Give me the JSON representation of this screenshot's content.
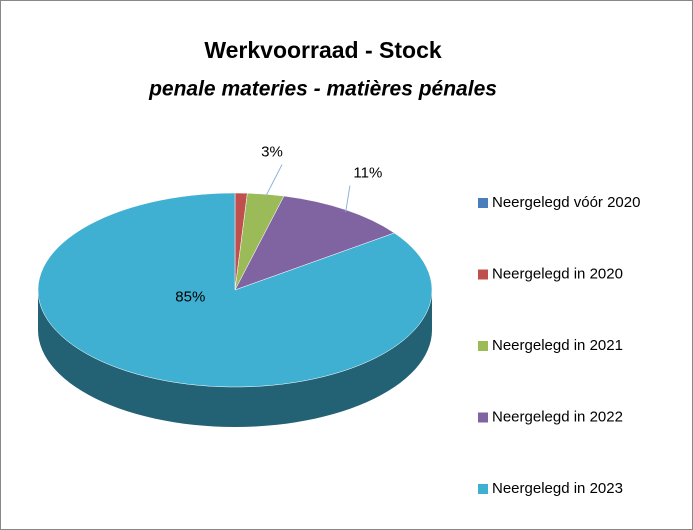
{
  "chart_data": {
    "type": "pie",
    "title": "Werkvoorraad - Stock",
    "subtitle": "penale materies - matières pénales",
    "categories": [
      "Neergelegd vóór 2020",
      "Neergelegd in 2020",
      "Neergelegd in 2021",
      "Neergelegd in 2022",
      "Neergelegd in 2023"
    ],
    "values": [
      0,
      1,
      3,
      11,
      85
    ],
    "value_labels": [
      null,
      null,
      "3%",
      "11%",
      "85%"
    ],
    "colors": [
      "#4a7ebb",
      "#c0504d",
      "#9bbb59",
      "#8064a2",
      "#3fb0d2"
    ],
    "legend": "right"
  }
}
